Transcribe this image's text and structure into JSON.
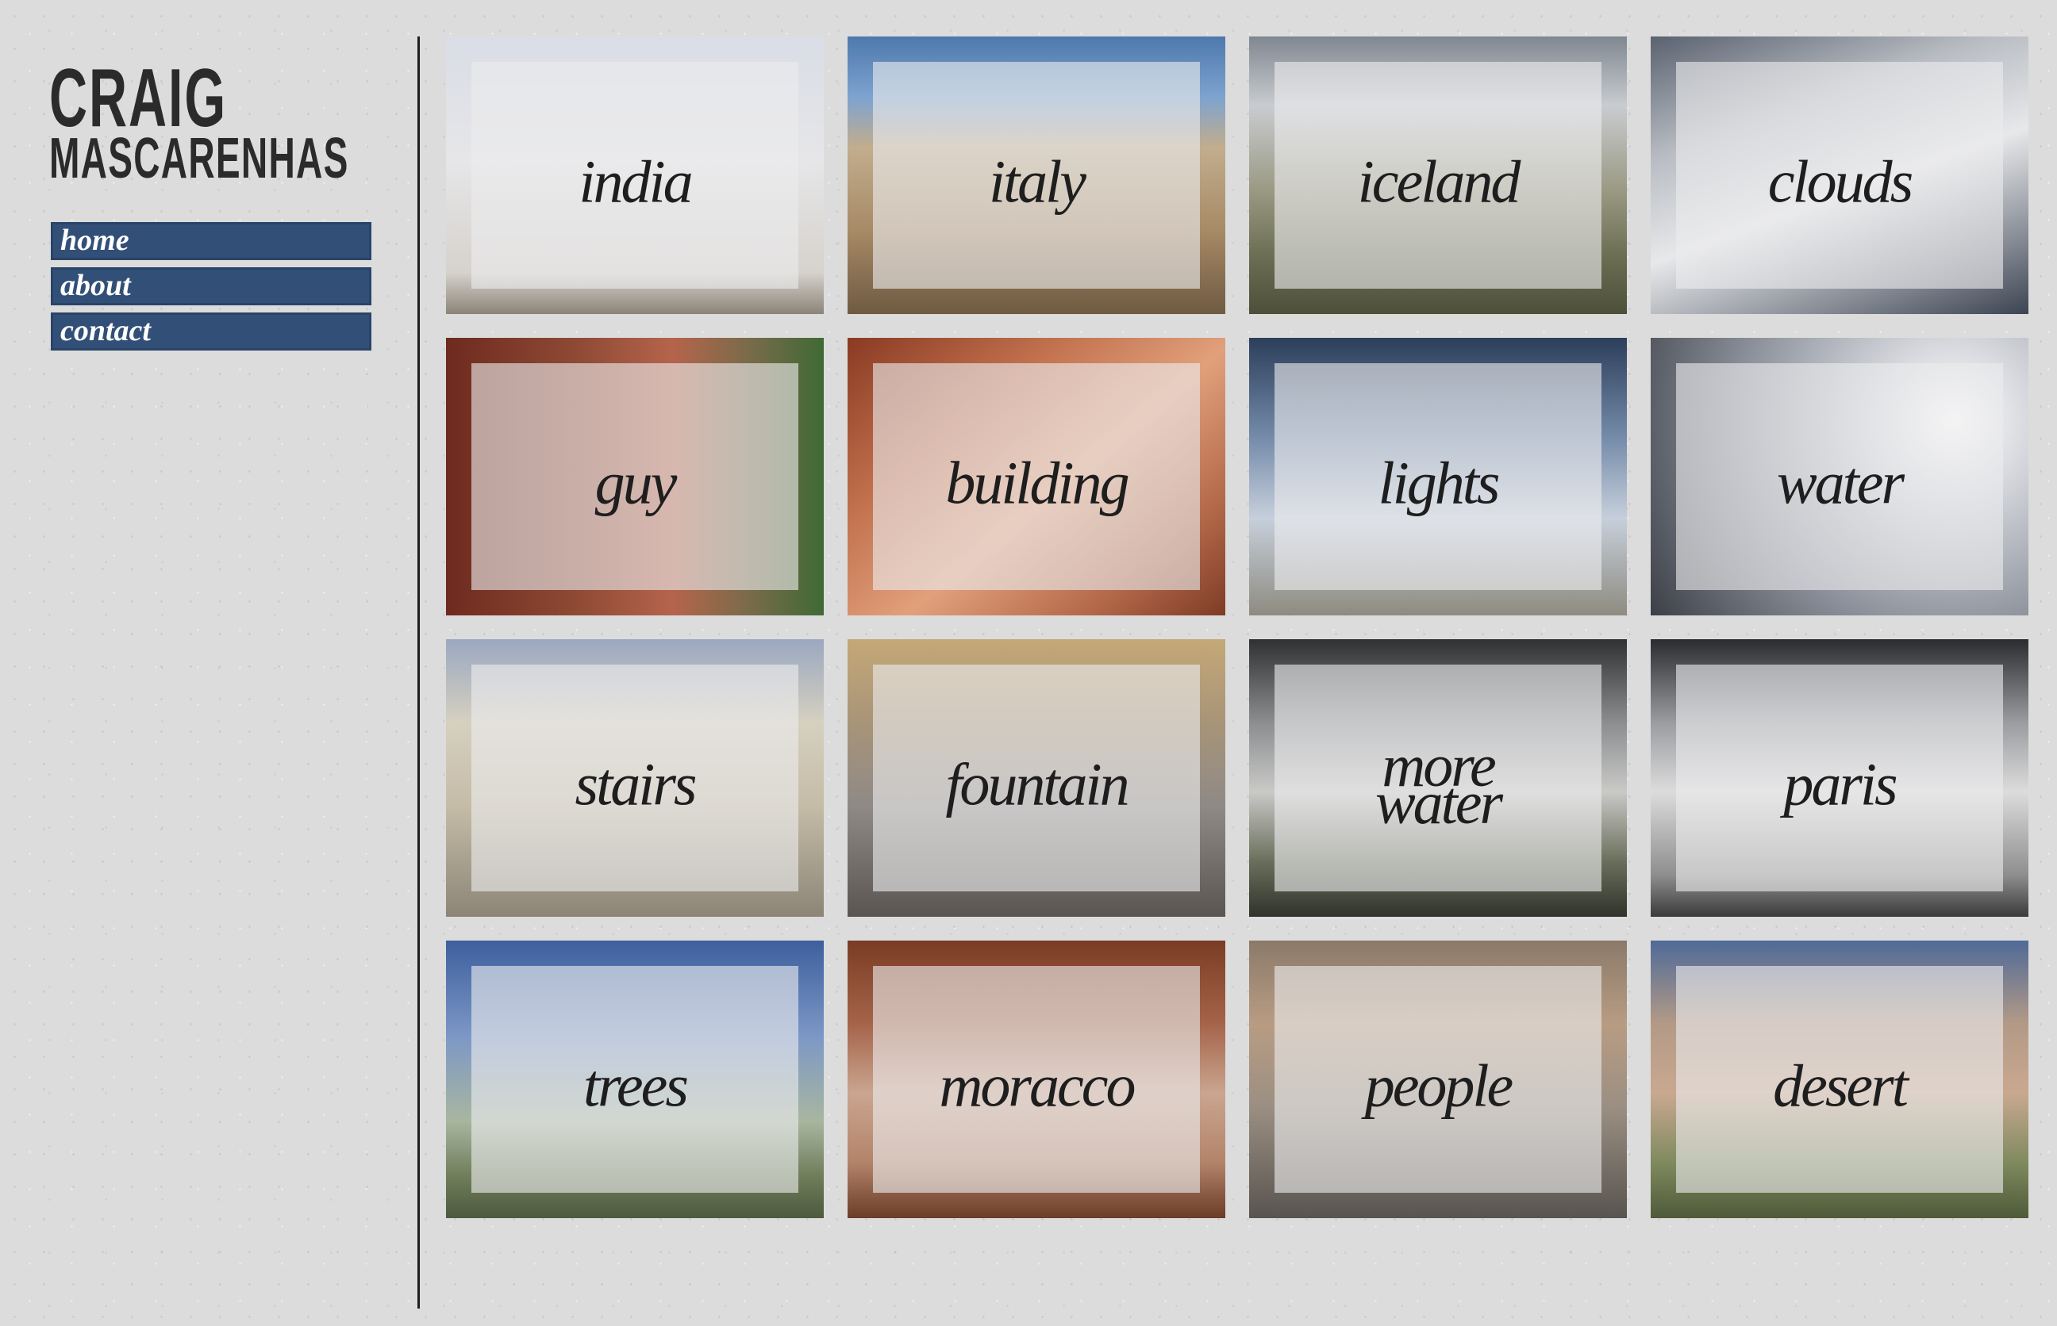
{
  "header": {
    "name_first": "CRAIG",
    "name_last": "MASCARENHAS"
  },
  "nav": {
    "items": [
      {
        "label": "home"
      },
      {
        "label": "about"
      },
      {
        "label": "contact"
      }
    ]
  },
  "gallery": {
    "tiles": [
      {
        "label": "india"
      },
      {
        "label": "italy"
      },
      {
        "label": "iceland"
      },
      {
        "label": "clouds"
      },
      {
        "label": "guy"
      },
      {
        "label": "building"
      },
      {
        "label": "lights"
      },
      {
        "label": "water"
      },
      {
        "label": "stairs"
      },
      {
        "label": "fountain"
      },
      {
        "label": "more\nwater"
      },
      {
        "label": "paris"
      },
      {
        "label": "trees"
      },
      {
        "label": "moracco"
      },
      {
        "label": "people"
      },
      {
        "label": "desert"
      }
    ]
  },
  "colors": {
    "nav_bg": "#324f78",
    "text_dark": "#1e1e1e",
    "page_bg": "#dcdcdc"
  }
}
